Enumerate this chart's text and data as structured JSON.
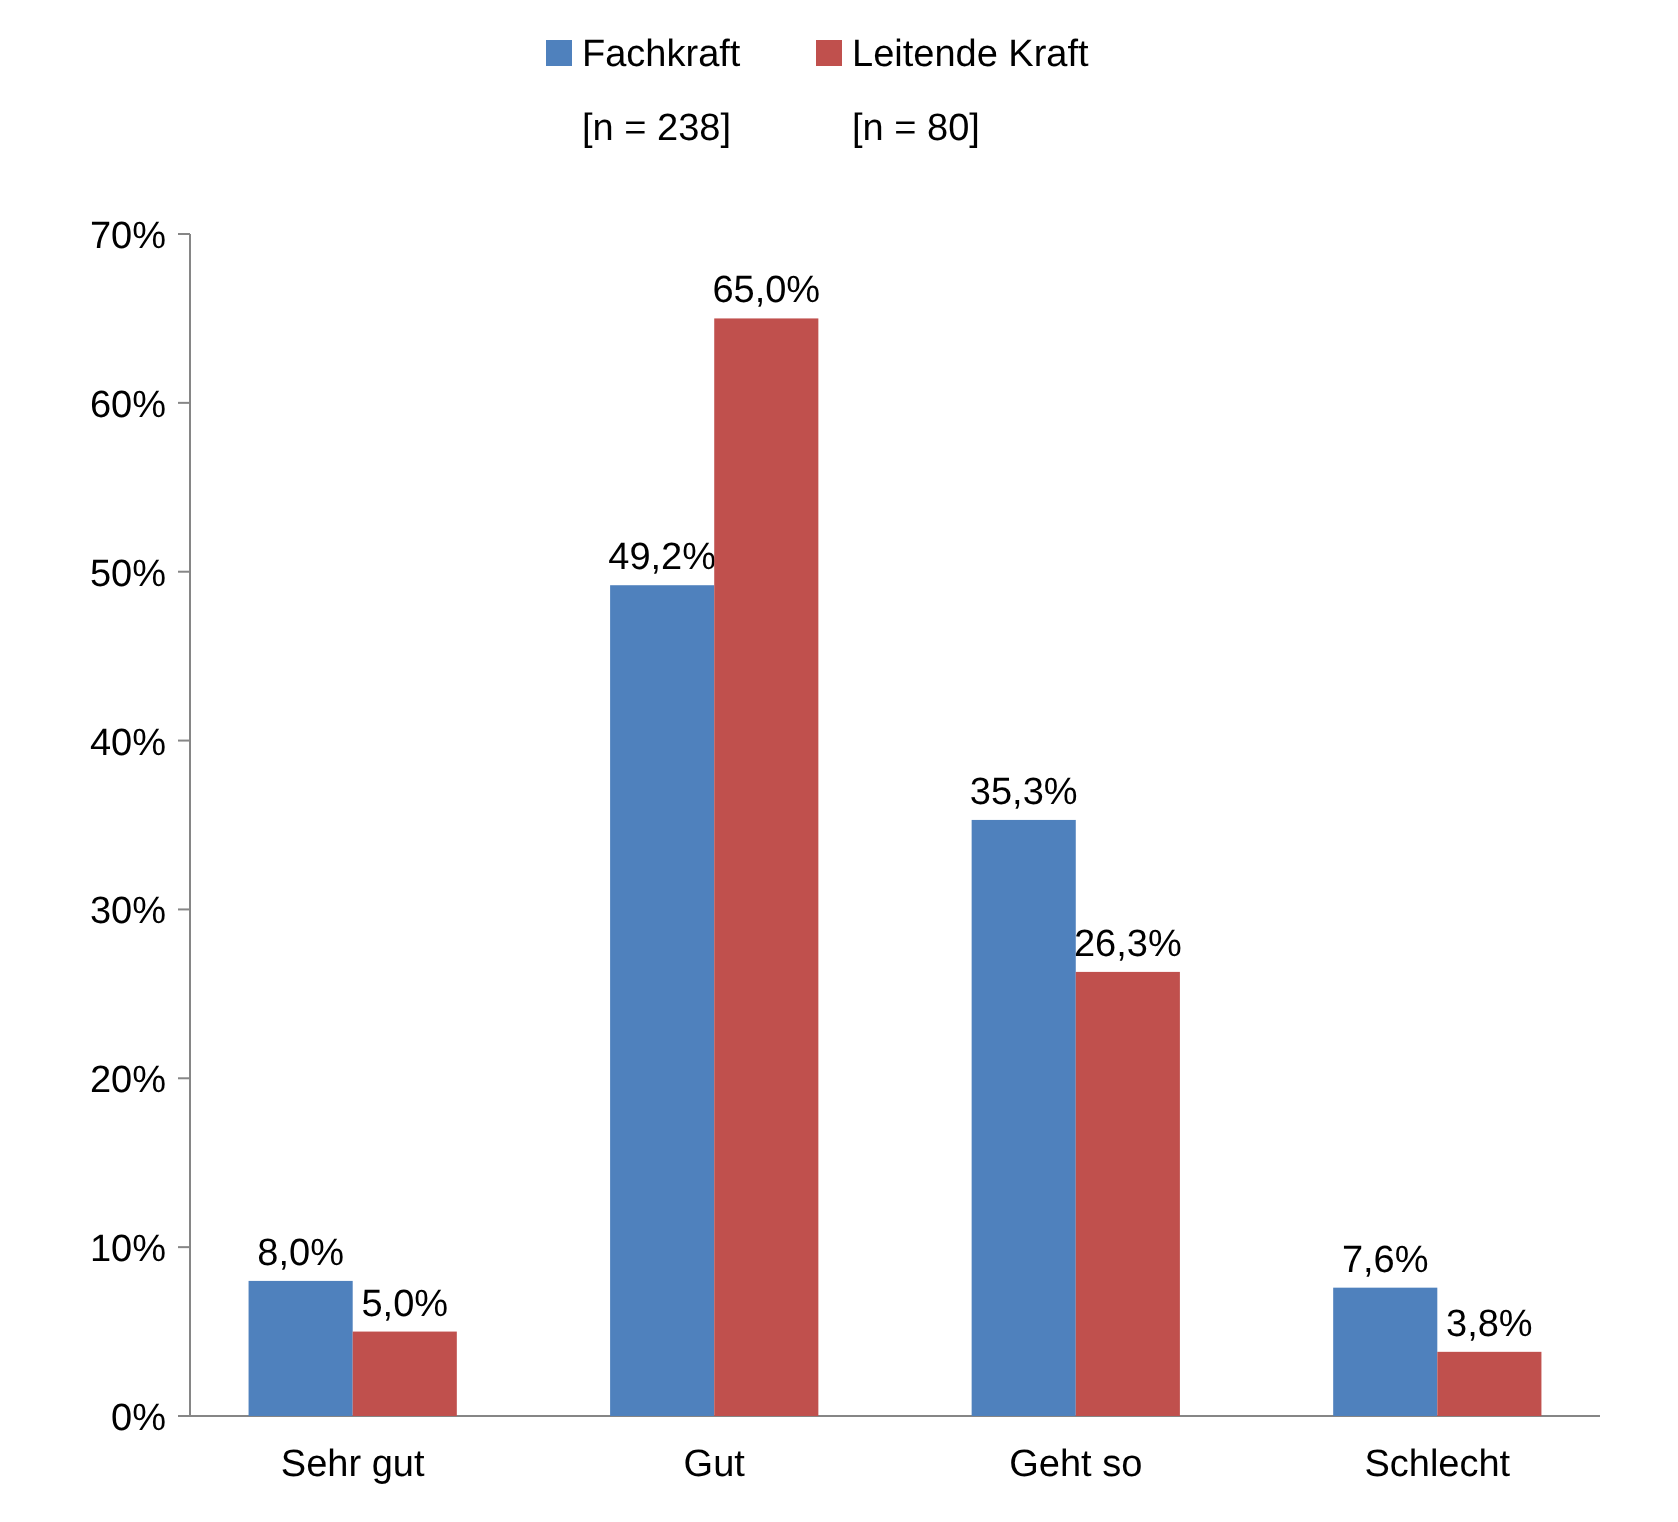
{
  "chart_data": {
    "type": "bar",
    "categories": [
      "Sehr gut",
      "Gut",
      "Geht so",
      "Schlecht"
    ],
    "series": [
      {
        "name": "Fachkraft",
        "color": "#4f81bd",
        "values": [
          8.0,
          49.2,
          35.3,
          7.6
        ],
        "value_labels": [
          "8,0%",
          "49,2%",
          "35,3%",
          "7,6%"
        ]
      },
      {
        "name": "Leitende Kraft",
        "color": "#c0504d",
        "values": [
          5.0,
          65.0,
          26.3,
          3.8
        ],
        "value_labels": [
          "5,0%",
          "65,0%",
          "26,3%",
          "3,8%"
        ]
      }
    ],
    "ylim": [
      0,
      70
    ],
    "yticks": [
      {
        "value": 0,
        "label": "0%"
      },
      {
        "value": 10,
        "label": "10%"
      },
      {
        "value": 20,
        "label": "20%"
      },
      {
        "value": 30,
        "label": "30%"
      },
      {
        "value": 40,
        "label": "40%"
      },
      {
        "value": 50,
        "label": "50%"
      },
      {
        "value": 60,
        "label": "60%"
      },
      {
        "value": 70,
        "label": "70%"
      }
    ],
    "legend": "top",
    "annotations": [
      "[n = 238]",
      "[n = 80]"
    ]
  }
}
